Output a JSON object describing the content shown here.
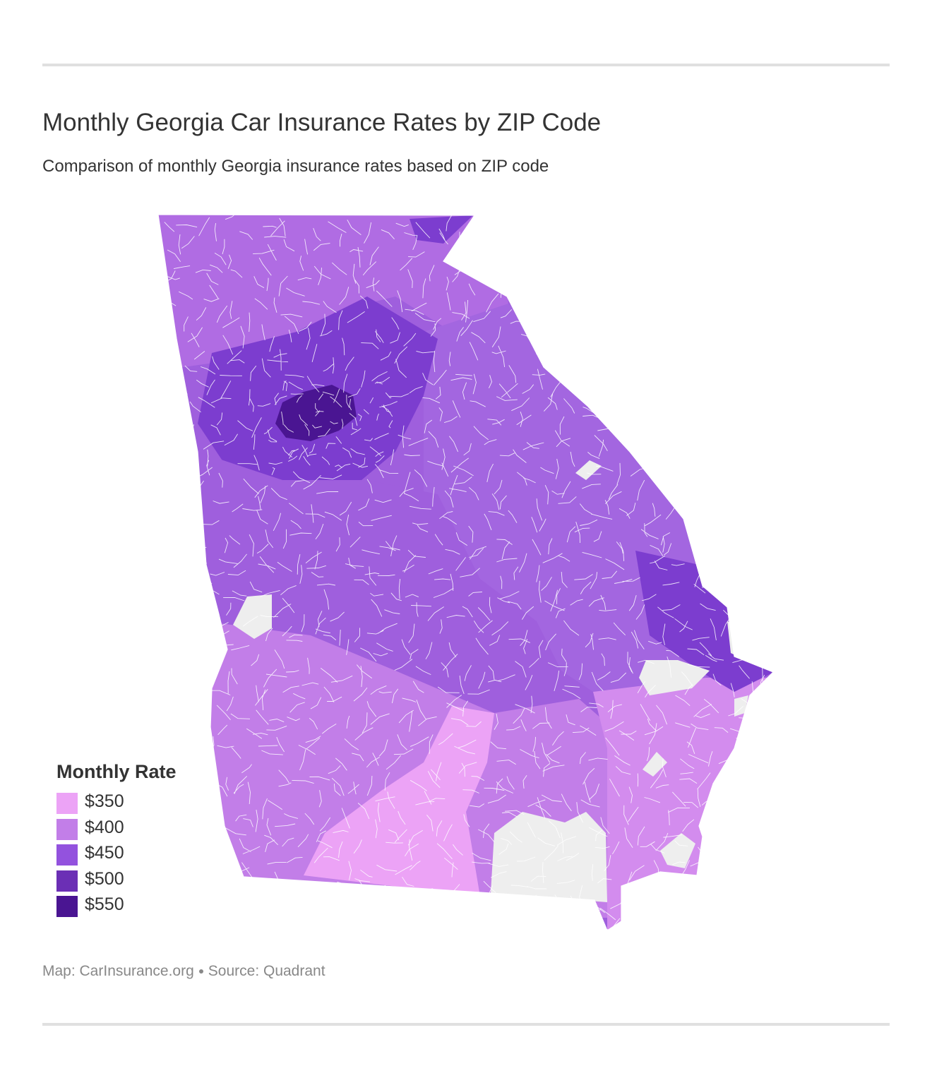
{
  "header": {
    "title": "Monthly Georgia Car Insurance Rates by ZIP Code",
    "subtitle": "Comparison of monthly Georgia insurance rates based on ZIP code"
  },
  "legend": {
    "title": "Monthly Rate",
    "items": [
      {
        "label": "$350",
        "value": 350,
        "color": "#eca3f6"
      },
      {
        "label": "$400",
        "value": 400,
        "color": "#c27ee8"
      },
      {
        "label": "$450",
        "value": 450,
        "color": "#9352de"
      },
      {
        "label": "$500",
        "value": 500,
        "color": "#6b2fb5"
      },
      {
        "label": "$550",
        "value": 550,
        "color": "#4a1592"
      }
    ]
  },
  "map": {
    "region": "Georgia",
    "no_data_color": "#eeeeee",
    "region_colors": {
      "north": "#b06ce3",
      "metro_outer": "#7c3dcf",
      "metro_core": "#4a1592",
      "east": "#a366e0",
      "central": "#9f5fdd",
      "southwest": "#c27ee8",
      "south": "#eca3f6",
      "coast": "#d38cee",
      "coast_north": "#7c3dcf"
    }
  },
  "credits": {
    "map_label": "Map: CarInsurance.org",
    "source_label": "Source: Quadrant"
  }
}
